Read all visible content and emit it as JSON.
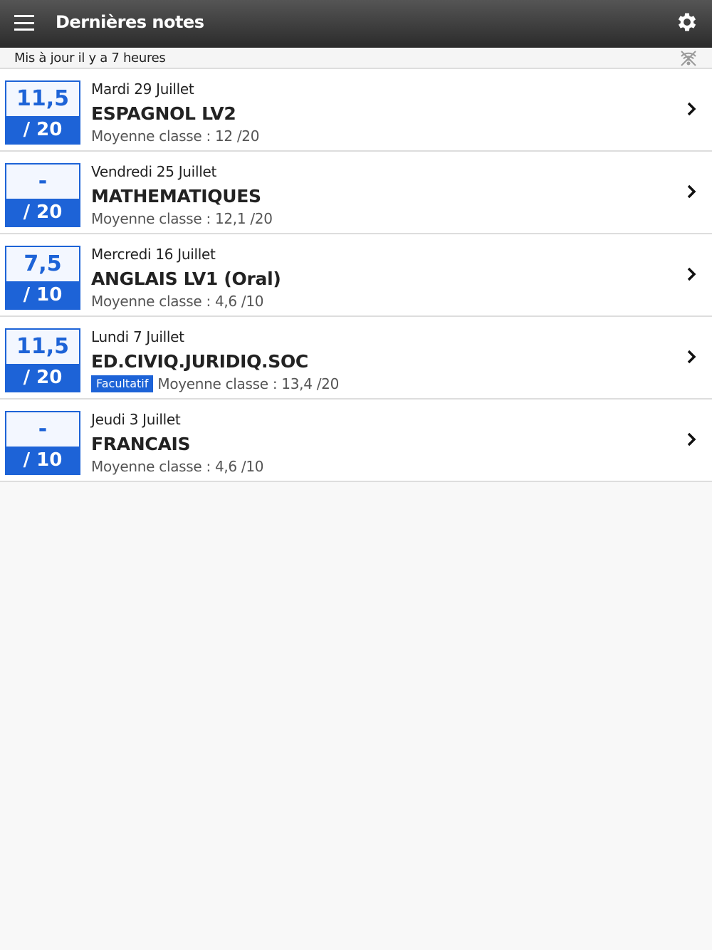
{
  "header": {
    "title": "Dernières notes",
    "menu_icon": "hamburger-icon",
    "settings_icon": "gear-icon"
  },
  "status": {
    "text": "Mis à jour il y a 7 heures",
    "icon": "wifi-off-icon"
  },
  "colors": {
    "accent": "#1d63d7",
    "header": "#3a3a3a"
  },
  "grades": [
    {
      "value": "11,5",
      "max": "/ 20",
      "date": "Mardi 29 Juillet",
      "subject": "ESPAGNOL LV2",
      "badge": "",
      "average": "Moyenne classe : 12 /20"
    },
    {
      "value": "-",
      "max": "/ 20",
      "date": "Vendredi 25 Juillet",
      "subject": "MATHEMATIQUES",
      "badge": "",
      "average": "Moyenne classe : 12,1 /20"
    },
    {
      "value": "7,5",
      "max": "/ 10",
      "date": "Mercredi 16 Juillet",
      "subject": "ANGLAIS LV1 (Oral)",
      "badge": "",
      "average": "Moyenne classe : 4,6 /10"
    },
    {
      "value": "11,5",
      "max": "/ 20",
      "date": "Lundi 7 Juillet",
      "subject": "ED.CIVIQ.JURIDIQ.SOC",
      "badge": "Facultatif",
      "average": "Moyenne classe : 13,4 /20"
    },
    {
      "value": "-",
      "max": "/ 10",
      "date": "Jeudi 3 Juillet",
      "subject": "FRANCAIS",
      "badge": "",
      "average": "Moyenne classe : 4,6 /10"
    }
  ]
}
